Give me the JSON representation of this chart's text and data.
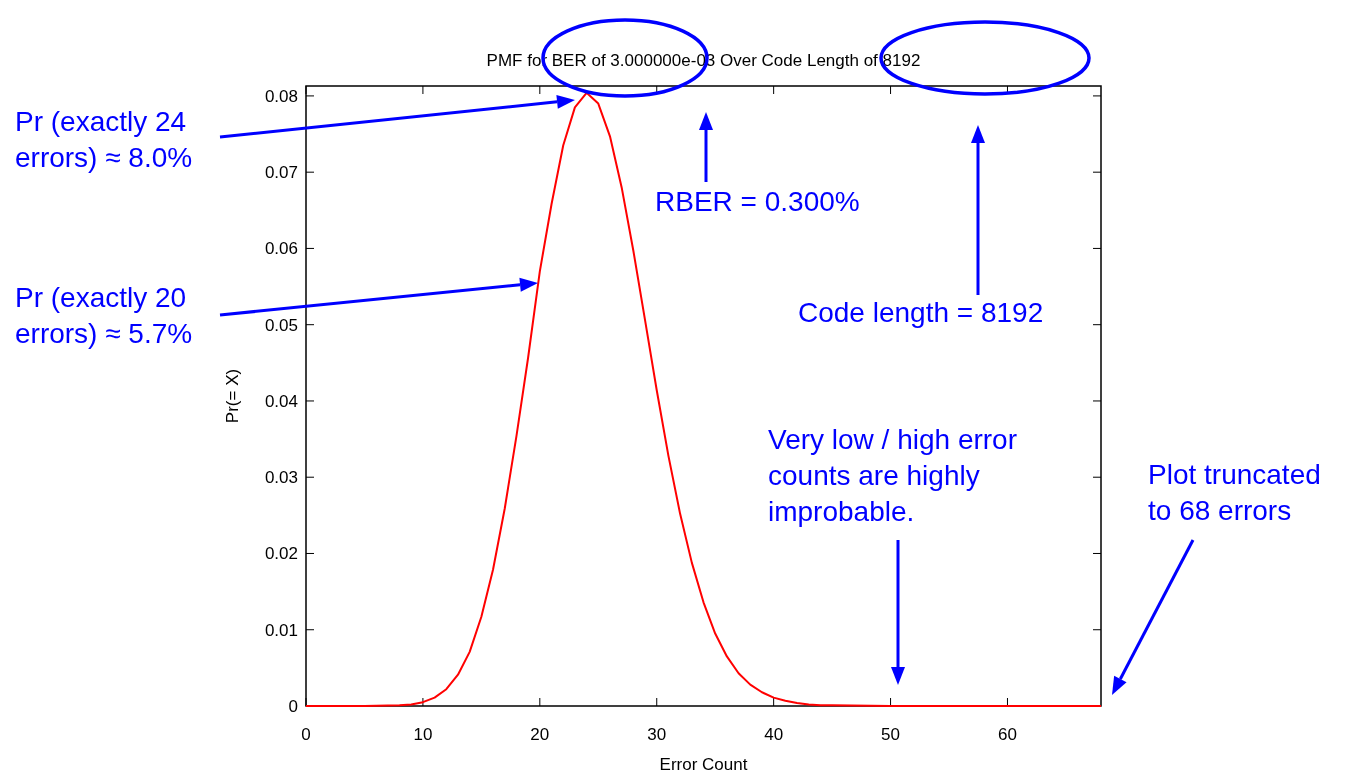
{
  "chart_data": {
    "type": "line",
    "title": "PMF for BER of 3.000000e-03 Over Code Length of 8192",
    "xlabel": "Error Count",
    "ylabel": "Pr(= X)",
    "x": [
      0,
      5,
      8,
      9,
      10,
      11,
      12,
      13,
      14,
      15,
      16,
      17,
      18,
      19,
      20,
      21,
      22,
      23,
      24,
      25,
      26,
      27,
      28,
      29,
      30,
      31,
      32,
      33,
      34,
      35,
      36,
      37,
      38,
      39,
      40,
      41,
      42,
      43,
      44,
      45,
      50,
      55,
      60,
      68
    ],
    "series": [
      {
        "color": "#ff0000",
        "values": [
          0,
          0,
          0.0001,
          0.0002,
          0.0005,
          0.0011,
          0.0022,
          0.0041,
          0.0071,
          0.0117,
          0.0179,
          0.0259,
          0.0354,
          0.0457,
          0.057,
          0.0658,
          0.0735,
          0.0785,
          0.0804,
          0.079,
          0.0747,
          0.068,
          0.0597,
          0.0506,
          0.0414,
          0.0328,
          0.0252,
          0.0188,
          0.0136,
          0.0095,
          0.0065,
          0.0043,
          0.0028,
          0.0018,
          0.0011,
          0.0007,
          0.0004,
          0.0002,
          0.0001,
          0.0001,
          0,
          0,
          0,
          0
        ]
      }
    ],
    "xlim": [
      0,
      68
    ],
    "xticks": [
      0,
      10,
      20,
      30,
      40,
      50,
      60
    ],
    "ylim": [
      0,
      0.0813
    ],
    "yticks": [
      0,
      0.01,
      0.02,
      0.03,
      0.04,
      0.05,
      0.06,
      0.07,
      0.08
    ],
    "grid": false,
    "marker": "none",
    "line_style": "solid",
    "annotations": [
      "Pr (exactly 24\nerrors) ≈ 8.0%",
      "Pr (exactly 20\nerrors) ≈ 5.7%",
      "RBER = 0.300%",
      "Code length = 8192",
      "Very low / high error\ncounts are highly\nimprobable.",
      "Plot truncated\nto 68 errors"
    ]
  }
}
